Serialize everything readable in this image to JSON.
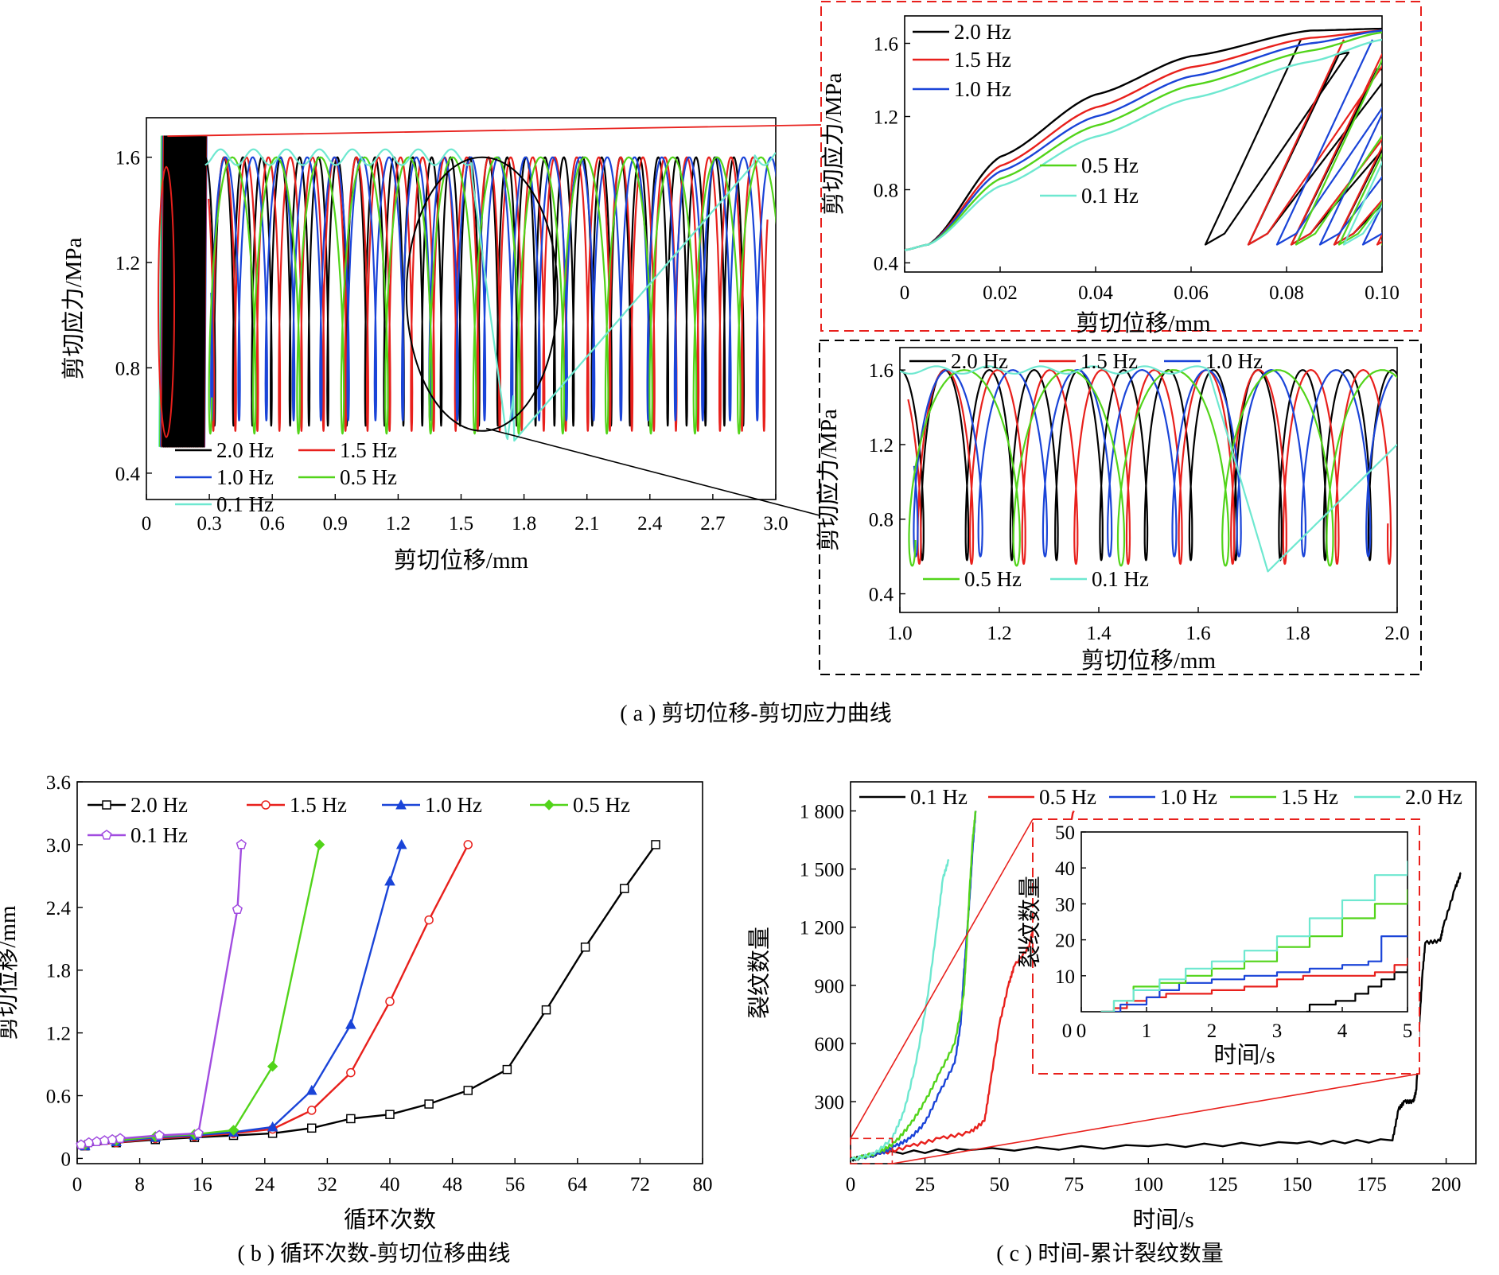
{
  "colors": {
    "f20": "#000000",
    "f15": "#e8201c",
    "f10": "#1a44d8",
    "f05": "#52d41a",
    "f01": "#6ee8d0",
    "b01": "#a14ce0",
    "annotation": "#e8201c"
  },
  "captions": {
    "a": "( a ) 剪切位移-剪切应力曲线",
    "b": "( b ) 循环次数-剪切位移曲线",
    "c": "( c ) 时间-累计裂纹数量"
  },
  "chart_data": [
    {
      "id": "a_main",
      "type": "line",
      "xlabel": "剪切位移/mm",
      "ylabel": "剪切应力/MPa",
      "xlim": [
        0,
        3.0
      ],
      "ylim": [
        0.3,
        1.75
      ],
      "xticks": [
        "0",
        "0.3",
        "0.6",
        "0.9",
        "1.2",
        "1.5",
        "1.8",
        "2.1",
        "2.4",
        "2.7",
        "3.0"
      ],
      "yticks": [
        "0.4",
        "0.8",
        "1.2",
        "1.6"
      ],
      "legend_position": "bottom-left",
      "series": [
        {
          "name": "2.0 Hz",
          "key": "f20",
          "x_end": 2.85,
          "period": 0.09,
          "trough": 0.58
        },
        {
          "name": "1.5 Hz",
          "key": "f15",
          "x_end": 2.98,
          "period": 0.105,
          "trough": 0.56
        },
        {
          "name": "1.0 Hz",
          "key": "f10",
          "x_end": 3.0,
          "period": 0.13,
          "trough": 0.6
        },
        {
          "name": "0.5 Hz",
          "key": "f05",
          "x_end": 3.0,
          "period": 0.21,
          "trough": 0.55
        },
        {
          "name": "0.1 Hz",
          "key": "f01",
          "x_end": 3.0,
          "period": 0.6,
          "trough": 0.52
        }
      ]
    },
    {
      "id": "a_inset1",
      "type": "line",
      "xlabel": "剪切位移/mm",
      "ylabel": "剪切应力/MPa",
      "xlim": [
        0,
        0.1
      ],
      "ylim": [
        0.35,
        1.75
      ],
      "xticks": [
        "0",
        "0.02",
        "0.04",
        "0.06",
        "0.08",
        "0.10"
      ],
      "yticks": [
        "0.4",
        "0.8",
        "1.2",
        "1.6"
      ],
      "series": [
        {
          "name": "2.0 Hz",
          "key": "f20",
          "loading": [
            [
              0,
              0.47
            ],
            [
              0.005,
              0.5
            ],
            [
              0.02,
              0.98
            ],
            [
              0.04,
              1.32
            ],
            [
              0.06,
              1.53
            ],
            [
              0.085,
              1.67
            ],
            [
              0.1,
              1.68
            ]
          ]
        },
        {
          "name": "1.5 Hz",
          "key": "f15",
          "loading": [
            [
              0,
              0.47
            ],
            [
              0.005,
              0.5
            ],
            [
              0.02,
              0.93
            ],
            [
              0.04,
              1.25
            ],
            [
              0.06,
              1.47
            ],
            [
              0.085,
              1.63
            ],
            [
              0.1,
              1.67
            ]
          ]
        },
        {
          "name": "1.0 Hz",
          "key": "f10",
          "loading": [
            [
              0,
              0.47
            ],
            [
              0.005,
              0.5
            ],
            [
              0.02,
              0.9
            ],
            [
              0.04,
              1.2
            ],
            [
              0.06,
              1.42
            ],
            [
              0.085,
              1.6
            ],
            [
              0.1,
              1.67
            ]
          ]
        },
        {
          "name": "0.5 Hz",
          "key": "f05",
          "loading": [
            [
              0,
              0.47
            ],
            [
              0.005,
              0.5
            ],
            [
              0.02,
              0.86
            ],
            [
              0.04,
              1.15
            ],
            [
              0.06,
              1.37
            ],
            [
              0.085,
              1.56
            ],
            [
              0.1,
              1.66
            ]
          ]
        },
        {
          "name": "0.1 Hz",
          "key": "f01",
          "loading": [
            [
              0,
              0.47
            ],
            [
              0.005,
              0.5
            ],
            [
              0.02,
              0.82
            ],
            [
              0.04,
              1.09
            ],
            [
              0.06,
              1.3
            ],
            [
              0.085,
              1.5
            ],
            [
              0.1,
              1.62
            ]
          ]
        }
      ]
    },
    {
      "id": "a_inset2",
      "type": "line",
      "xlabel": "剪切位移/mm",
      "ylabel": "剪切应力/MPa",
      "xlim": [
        1.0,
        2.0
      ],
      "ylim": [
        0.3,
        1.72
      ],
      "xticks": [
        "1.0",
        "1.2",
        "1.4",
        "1.6",
        "1.8",
        "2.0"
      ],
      "yticks": [
        "0.4",
        "0.8",
        "1.2",
        "1.6"
      ],
      "series": [
        {
          "name": "2.0 Hz",
          "key": "f20",
          "period": 0.09,
          "trough": 0.58
        },
        {
          "name": "1.5 Hz",
          "key": "f15",
          "period": 0.105,
          "trough": 0.56
        },
        {
          "name": "1.0 Hz",
          "key": "f10",
          "period": 0.13,
          "trough": 0.6
        },
        {
          "name": "0.5 Hz",
          "key": "f05",
          "period": 0.21,
          "trough": 0.55
        },
        {
          "name": "0.1 Hz",
          "key": "f01",
          "period": 0.6,
          "trough": 0.52
        }
      ]
    },
    {
      "id": "b",
      "type": "line",
      "xlabel": "循环次数",
      "ylabel": "剪切位移/mm",
      "xlim": [
        0,
        80
      ],
      "ylim": [
        -0.05,
        3.6
      ],
      "xticks": [
        "0",
        "8",
        "16",
        "24",
        "32",
        "40",
        "48",
        "56",
        "64",
        "72",
        "80"
      ],
      "yticks": [
        "0",
        "0.6",
        "1.2",
        "1.8",
        "2.4",
        "3.0",
        "3.6"
      ],
      "legend_position": "top",
      "series": [
        {
          "name": "2.0 Hz",
          "key": "f20",
          "marker": "square",
          "x": [
            1,
            5,
            10,
            15,
            20,
            25,
            30,
            35,
            40,
            45,
            50,
            55,
            60,
            65,
            70,
            74
          ],
          "y": [
            0.12,
            0.15,
            0.18,
            0.2,
            0.22,
            0.24,
            0.29,
            0.38,
            0.42,
            0.52,
            0.65,
            0.85,
            1.42,
            2.02,
            2.58,
            3.0
          ]
        },
        {
          "name": "1.5 Hz",
          "key": "f15",
          "marker": "circle",
          "x": [
            1,
            5,
            10,
            15,
            20,
            25,
            30,
            35,
            40,
            45,
            50
          ],
          "y": [
            0.12,
            0.15,
            0.19,
            0.21,
            0.24,
            0.28,
            0.46,
            0.82,
            1.5,
            2.28,
            3.0
          ]
        },
        {
          "name": "1.0 Hz",
          "key": "f10",
          "marker": "triangle",
          "x": [
            1,
            5,
            10,
            15,
            20,
            25,
            30,
            35,
            40,
            41.5
          ],
          "y": [
            0.12,
            0.16,
            0.2,
            0.22,
            0.25,
            0.3,
            0.65,
            1.28,
            2.65,
            3.0
          ]
        },
        {
          "name": "0.5 Hz",
          "key": "f05",
          "marker": "diamond",
          "x": [
            1,
            5,
            10,
            15,
            20,
            25,
            31
          ],
          "y": [
            0.13,
            0.17,
            0.21,
            0.23,
            0.27,
            0.88,
            3.0
          ]
        },
        {
          "name": "0.1 Hz",
          "key": "b01",
          "marker": "pentagon",
          "x": [
            0.5,
            1.5,
            2.5,
            3.5,
            4.5,
            5.5,
            10.5,
            15.5,
            20.5,
            21
          ],
          "y": [
            0.13,
            0.15,
            0.16,
            0.17,
            0.18,
            0.19,
            0.22,
            0.24,
            2.38,
            3.0
          ]
        }
      ]
    },
    {
      "id": "c_main",
      "type": "line",
      "xlabel": "时间/s",
      "ylabel": "裂纹数量",
      "xlim": [
        0,
        210
      ],
      "ylim": [
        -20,
        1950
      ],
      "xticks": [
        "0",
        "25",
        "50",
        "75",
        "100",
        "125",
        "150",
        "175",
        "200"
      ],
      "yticks": [
        "300",
        "600",
        "900",
        "1 200",
        "1 500",
        "1 800"
      ],
      "legend_position": "top",
      "series": [
        {
          "name": "0.1 Hz",
          "key": "f20",
          "x": [
            0,
            3.5,
            10,
            40,
            100,
            150,
            182,
            184,
            186,
            189,
            190,
            191,
            192,
            193,
            198,
            199,
            203,
            205
          ],
          "y": [
            0,
            12,
            35,
            50,
            70,
            85,
            100,
            260,
            300,
            300,
            360,
            700,
            950,
            1120,
            1130,
            1200,
            1400,
            1480
          ]
        },
        {
          "name": "0.5 Hz",
          "key": "f15",
          "x": [
            0,
            10,
            20,
            30,
            40,
            45,
            47,
            50,
            53,
            55,
            60,
            62,
            64,
            67,
            70,
            72,
            75
          ],
          "y": [
            0,
            30,
            70,
            110,
            140,
            200,
            400,
            700,
            900,
            1000,
            1100,
            1250,
            1420,
            1500,
            1550,
            1650,
            1800
          ]
        },
        {
          "name": "1.0 Hz",
          "key": "f10",
          "x": [
            0,
            10,
            15,
            20,
            25,
            30,
            35,
            37,
            38,
            39,
            40,
            41,
            42
          ],
          "y": [
            0,
            30,
            70,
            110,
            190,
            350,
            500,
            700,
            950,
            1150,
            1350,
            1600,
            1800
          ]
        },
        {
          "name": "1.5 Hz",
          "key": "f05",
          "x": [
            0,
            10,
            15,
            20,
            25,
            30,
            35,
            38,
            39,
            40,
            41,
            42
          ],
          "y": [
            0,
            40,
            90,
            180,
            300,
            450,
            600,
            850,
            1100,
            1400,
            1650,
            1800
          ]
        },
        {
          "name": "2.0 Hz",
          "key": "f01",
          "x": [
            0,
            8,
            14,
            18,
            22,
            26,
            29,
            31,
            33
          ],
          "y": [
            0,
            30,
            110,
            250,
            500,
            850,
            1200,
            1450,
            1550
          ]
        }
      ]
    },
    {
      "id": "c_inset",
      "type": "line",
      "xlabel": "时间/s",
      "ylabel": "裂纹数量",
      "xlim": [
        0,
        5
      ],
      "ylim": [
        0,
        50
      ],
      "xticks": [
        "0",
        "1",
        "2",
        "3",
        "4",
        "5"
      ],
      "yticks": [
        "10",
        "20",
        "30",
        "40",
        "50"
      ],
      "series": [
        {
          "name": "0.1 Hz",
          "key": "f20",
          "x": [
            3.45,
            3.5,
            3.9,
            4.2,
            4.4,
            4.6,
            4.8,
            5
          ],
          "y": [
            0,
            2,
            3,
            5,
            7,
            9,
            11,
            12
          ]
        },
        {
          "name": "0.5 Hz",
          "key": "f15",
          "x": [
            0.3,
            0.5,
            0.7,
            1,
            1.3,
            2,
            2.5,
            3,
            3.4,
            4,
            4.5,
            4.8,
            5
          ],
          "y": [
            0,
            1,
            3,
            4,
            5,
            6,
            7,
            9,
            10,
            10,
            11,
            13,
            15
          ]
        },
        {
          "name": "1.0 Hz",
          "key": "f10",
          "x": [
            0.3,
            0.6,
            1,
            1.2,
            1.5,
            2,
            2.5,
            3,
            3.5,
            4,
            4.4,
            4.6,
            5
          ],
          "y": [
            0,
            2,
            4,
            6,
            8,
            9,
            10,
            11,
            12,
            13,
            14,
            21,
            21
          ]
        },
        {
          "name": "1.5 Hz",
          "key": "f05",
          "x": [
            0.3,
            0.5,
            0.8,
            1.2,
            1.6,
            2,
            2.5,
            3,
            3.5,
            4,
            4.5,
            5
          ],
          "y": [
            0,
            3,
            7,
            8,
            10,
            12,
            14,
            18,
            21,
            26,
            30,
            34
          ]
        },
        {
          "name": "2.0 Hz",
          "key": "f01",
          "x": [
            0.3,
            0.5,
            0.8,
            1.2,
            1.6,
            2,
            2.5,
            3,
            3.5,
            4,
            4.5,
            5
          ],
          "y": [
            0,
            3,
            6,
            9,
            12,
            14,
            17,
            21,
            26,
            31,
            38,
            42
          ]
        }
      ]
    }
  ]
}
